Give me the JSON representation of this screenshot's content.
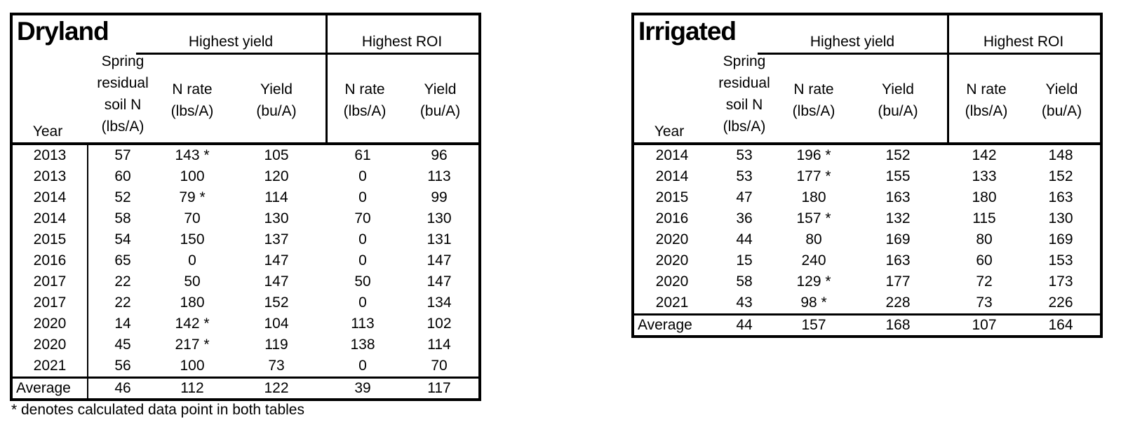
{
  "footnote": "* denotes calculated data point in both tables",
  "chart_data": [
    {
      "type": "table",
      "title": "Dryland",
      "column_groups": [
        "Highest yield",
        "Highest ROI"
      ],
      "columns": [
        "Year",
        "Spring residual soil N (lbs/A)",
        "Highest yield N rate (lbs/A)",
        "Highest yield Yield (bu/A)",
        "Highest ROI N rate (lbs/A)",
        "Highest ROI Yield (bu/A)"
      ],
      "header": {
        "group_yield": "Highest yield",
        "group_roi": "Highest ROI",
        "year": "Year",
        "spring_lines": [
          "Spring",
          "residual",
          "soil N",
          "(lbs/A)"
        ],
        "n_rate_line1": "N rate",
        "n_rate_line2": "(lbs/A)",
        "yield_line1": "Yield",
        "yield_line2": "(bu/A)"
      },
      "rows": [
        [
          "2013",
          "57",
          "143 *",
          "105",
          "61",
          "96"
        ],
        [
          "2013",
          "60",
          "100",
          "120",
          "0",
          "113"
        ],
        [
          "2014",
          "52",
          "79 *",
          "114",
          "0",
          "99"
        ],
        [
          "2014",
          "58",
          "70",
          "130",
          "70",
          "130"
        ],
        [
          "2015",
          "54",
          "150",
          "137",
          "0",
          "131"
        ],
        [
          "2016",
          "65",
          "0",
          "147",
          "0",
          "147"
        ],
        [
          "2017",
          "22",
          "50",
          "147",
          "50",
          "147"
        ],
        [
          "2017",
          "22",
          "180",
          "152",
          "0",
          "134"
        ],
        [
          "2020",
          "14",
          "142 *",
          "104",
          "113",
          "102"
        ],
        [
          "2020",
          "45",
          "217 *",
          "119",
          "138",
          "114"
        ],
        [
          "2021",
          "56",
          "100",
          "73",
          "0",
          "70"
        ]
      ],
      "average_row": [
        "Average",
        "46",
        "112",
        "122",
        "39",
        "117"
      ]
    },
    {
      "type": "table",
      "title": "Irrigated",
      "column_groups": [
        "Highest yield",
        "Highest ROI"
      ],
      "columns": [
        "Year",
        "Spring residual soil N (lbs/A)",
        "Highest yield N rate (lbs/A)",
        "Highest yield Yield (bu/A)",
        "Highest ROI N rate (lbs/A)",
        "Highest ROI Yield (bu/A)"
      ],
      "header": {
        "group_yield": "Highest yield",
        "group_roi": "Highest ROI",
        "year": "Year",
        "spring_lines": [
          "Spring",
          "residual",
          "soil N",
          "(lbs/A)"
        ],
        "n_rate_line1": "N rate",
        "n_rate_line2": "(lbs/A)",
        "yield_line1": "Yield",
        "yield_line2": "(bu/A)"
      },
      "rows": [
        [
          "2014",
          "53",
          "196 *",
          "152",
          "142",
          "148"
        ],
        [
          "2014",
          "53",
          "177 *",
          "155",
          "133",
          "152"
        ],
        [
          "2015",
          "47",
          "180",
          "163",
          "180",
          "163"
        ],
        [
          "2016",
          "36",
          "157 *",
          "132",
          "115",
          "130"
        ],
        [
          "2020",
          "44",
          "80",
          "169",
          "80",
          "169"
        ],
        [
          "2020",
          "15",
          "240",
          "163",
          "60",
          "153"
        ],
        [
          "2020",
          "58",
          "129 *",
          "177",
          "72",
          "173"
        ],
        [
          "2021",
          "43",
          "98 *",
          "228",
          "73",
          "226"
        ]
      ],
      "average_row": [
        "Average",
        "44",
        "157",
        "168",
        "107",
        "164"
      ]
    }
  ]
}
